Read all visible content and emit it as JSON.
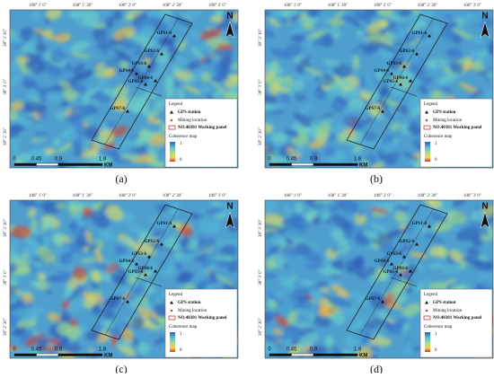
{
  "map": {
    "top_labels": [
      "108° 1' 0\"",
      "108° 1' 30\"",
      "108° 2' 0\"",
      "108° 2' 30\"",
      "108° 3' 0\""
    ],
    "left_labels": [
      "38° 3' 30\"",
      "38° 3' 0\"",
      "38° 2' 30\""
    ],
    "north": "N",
    "gps_labels": [
      "GPS1-6",
      "GPS2-6",
      "GPS3-6",
      "GPS4-6",
      "GPS5-6",
      "GPS6-6",
      "GPS7-6"
    ],
    "scale": {
      "ticks": [
        0,
        0.45,
        0.9,
        1.8
      ],
      "unit": "KM"
    },
    "legend": {
      "title": "Legend",
      "gps": "GPS station",
      "mining": "Mining location",
      "panel": "NO.40301 Working panel",
      "coherence": "Coherence map",
      "max": 1,
      "min": 0
    }
  },
  "panels": [
    {
      "caption": "(a)"
    },
    {
      "caption": "(b)"
    },
    {
      "caption": "(c)"
    },
    {
      "caption": "(d)"
    }
  ]
}
